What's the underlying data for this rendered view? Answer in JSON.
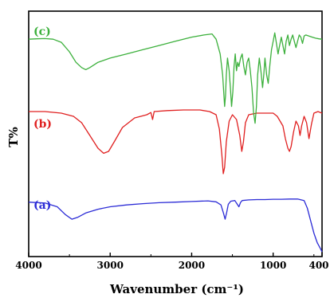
{
  "chart_data": {
    "type": "line",
    "xlabel": "Wavenumber (cm⁻¹)",
    "ylabel": "T%",
    "xlim": [
      4000,
      400
    ],
    "x_reversed": true,
    "xticks": [
      "4000",
      "3000",
      "2000",
      "1000",
      "400"
    ],
    "xtick_values": [
      4000,
      3000,
      2000,
      1000,
      400
    ],
    "ylim": [
      0,
      100
    ],
    "grid": false,
    "series": [
      {
        "name": "(a)",
        "color": "#2b2bd6",
        "points": [
          [
            4000,
            16.5
          ],
          [
            3800,
            16.2
          ],
          [
            3650,
            15.0
          ],
          [
            3550,
            12.5
          ],
          [
            3470,
            11.0
          ],
          [
            3400,
            11.6
          ],
          [
            3300,
            13.0
          ],
          [
            3150,
            14.2
          ],
          [
            3000,
            15.0
          ],
          [
            2800,
            15.6
          ],
          [
            2600,
            16.0
          ],
          [
            2400,
            16.3
          ],
          [
            2200,
            16.5
          ],
          [
            2000,
            16.7
          ],
          [
            1800,
            16.9
          ],
          [
            1700,
            16.6
          ],
          [
            1640,
            15.6
          ],
          [
            1610,
            13.0
          ],
          [
            1590,
            11.0
          ],
          [
            1570,
            13.2
          ],
          [
            1550,
            15.8
          ],
          [
            1520,
            16.8
          ],
          [
            1470,
            17.0
          ],
          [
            1440,
            15.8
          ],
          [
            1420,
            15.0
          ],
          [
            1400,
            16.4
          ],
          [
            1380,
            17.0
          ],
          [
            1300,
            17.2
          ],
          [
            1200,
            17.3
          ],
          [
            1100,
            17.3
          ],
          [
            1000,
            17.4
          ],
          [
            900,
            17.4
          ],
          [
            800,
            17.5
          ],
          [
            700,
            17.5
          ],
          [
            620,
            17.0
          ],
          [
            580,
            14.5
          ],
          [
            540,
            10.5
          ],
          [
            500,
            6.5
          ],
          [
            460,
            3.5
          ],
          [
            420,
            1.5
          ],
          [
            400,
            0.5
          ]
        ]
      },
      {
        "name": "(b)",
        "color": "#e02020",
        "points": [
          [
            4000,
            51.5
          ],
          [
            3800,
            51.5
          ],
          [
            3600,
            51.0
          ],
          [
            3450,
            50.0
          ],
          [
            3350,
            48.0
          ],
          [
            3250,
            44.0
          ],
          [
            3150,
            40.0
          ],
          [
            3080,
            38.4
          ],
          [
            3020,
            39.0
          ],
          [
            2950,
            42.0
          ],
          [
            2850,
            46.5
          ],
          [
            2700,
            49.5
          ],
          [
            2550,
            50.5
          ],
          [
            2500,
            51.2
          ],
          [
            2480,
            49.0
          ],
          [
            2460,
            51.5
          ],
          [
            2300,
            51.8
          ],
          [
            2100,
            52.0
          ],
          [
            1900,
            52.0
          ],
          [
            1780,
            51.5
          ],
          [
            1700,
            50.5
          ],
          [
            1660,
            46.0
          ],
          [
            1630,
            38.0
          ],
          [
            1612,
            32.0
          ],
          [
            1595,
            34.0
          ],
          [
            1575,
            42.0
          ],
          [
            1540,
            48.5
          ],
          [
            1500,
            50.5
          ],
          [
            1450,
            49.0
          ],
          [
            1410,
            44.0
          ],
          [
            1385,
            39.0
          ],
          [
            1365,
            42.0
          ],
          [
            1340,
            48.0
          ],
          [
            1300,
            50.5
          ],
          [
            1200,
            51.0
          ],
          [
            1100,
            51.0
          ],
          [
            1000,
            51.0
          ],
          [
            950,
            50.0
          ],
          [
            880,
            47.0
          ],
          [
            850,
            43.0
          ],
          [
            820,
            40.0
          ],
          [
            800,
            39.0
          ],
          [
            780,
            40.5
          ],
          [
            750,
            45.0
          ],
          [
            720,
            48.5
          ],
          [
            690,
            47.0
          ],
          [
            670,
            44.0
          ],
          [
            650,
            47.0
          ],
          [
            620,
            50.0
          ],
          [
            590,
            48.0
          ],
          [
            560,
            43.0
          ],
          [
            530,
            47.5
          ],
          [
            500,
            51.0
          ],
          [
            450,
            51.5
          ],
          [
            400,
            51.0
          ]
        ]
      },
      {
        "name": "(c)",
        "color": "#3cb03c",
        "points": [
          [
            4000,
            87.0
          ],
          [
            3900,
            87.2
          ],
          [
            3800,
            87.3
          ],
          [
            3700,
            87.0
          ],
          [
            3600,
            85.5
          ],
          [
            3500,
            81.0
          ],
          [
            3420,
            76.0
          ],
          [
            3350,
            73.5
          ],
          [
            3300,
            72.5
          ],
          [
            3250,
            73.5
          ],
          [
            3150,
            76.0
          ],
          [
            3000,
            78.0
          ],
          [
            2800,
            80.0
          ],
          [
            2600,
            82.0
          ],
          [
            2400,
            84.0
          ],
          [
            2200,
            86.0
          ],
          [
            2000,
            88.0
          ],
          [
            1850,
            89.0
          ],
          [
            1750,
            89.5
          ],
          [
            1700,
            87.0
          ],
          [
            1650,
            80.0
          ],
          [
            1620,
            70.0
          ],
          [
            1595,
            55.0
          ],
          [
            1585,
            60.0
          ],
          [
            1575,
            70.0
          ],
          [
            1560,
            78.0
          ],
          [
            1540,
            72.0
          ],
          [
            1525,
            64.0
          ],
          [
            1510,
            55.0
          ],
          [
            1495,
            62.0
          ],
          [
            1480,
            74.0
          ],
          [
            1465,
            80.0
          ],
          [
            1450,
            72.0
          ],
          [
            1435,
            76.0
          ],
          [
            1420,
            74.0
          ],
          [
            1400,
            78.0
          ],
          [
            1380,
            80.0
          ],
          [
            1360,
            74.0
          ],
          [
            1340,
            70.0
          ],
          [
            1320,
            76.0
          ],
          [
            1300,
            78.0
          ],
          [
            1280,
            72.0
          ],
          [
            1260,
            64.0
          ],
          [
            1240,
            52.0
          ],
          [
            1222,
            47.0
          ],
          [
            1205,
            55.0
          ],
          [
            1190,
            70.0
          ],
          [
            1170,
            78.0
          ],
          [
            1150,
            72.0
          ],
          [
            1130,
            64.0
          ],
          [
            1115,
            70.0
          ],
          [
            1100,
            78.0
          ],
          [
            1080,
            70.0
          ],
          [
            1060,
            66.0
          ],
          [
            1040,
            75.0
          ],
          [
            1020,
            82.0
          ],
          [
            1000,
            86.0
          ],
          [
            980,
            90.0
          ],
          [
            960,
            85.0
          ],
          [
            940,
            80.0
          ],
          [
            920,
            84.0
          ],
          [
            900,
            88.0
          ],
          [
            880,
            84.0
          ],
          [
            860,
            80.0
          ],
          [
            840,
            86.0
          ],
          [
            820,
            89.0
          ],
          [
            800,
            84.0
          ],
          [
            780,
            87.0
          ],
          [
            760,
            89.0
          ],
          [
            740,
            86.0
          ],
          [
            720,
            83.0
          ],
          [
            700,
            86.0
          ],
          [
            680,
            89.0
          ],
          [
            660,
            88.0
          ],
          [
            640,
            85.0
          ],
          [
            620,
            88.5
          ],
          [
            600,
            89.0
          ],
          [
            560,
            88.5
          ],
          [
            520,
            88.0
          ],
          [
            480,
            87.5
          ],
          [
            440,
            87.2
          ],
          [
            400,
            87.0
          ]
        ]
      }
    ]
  }
}
